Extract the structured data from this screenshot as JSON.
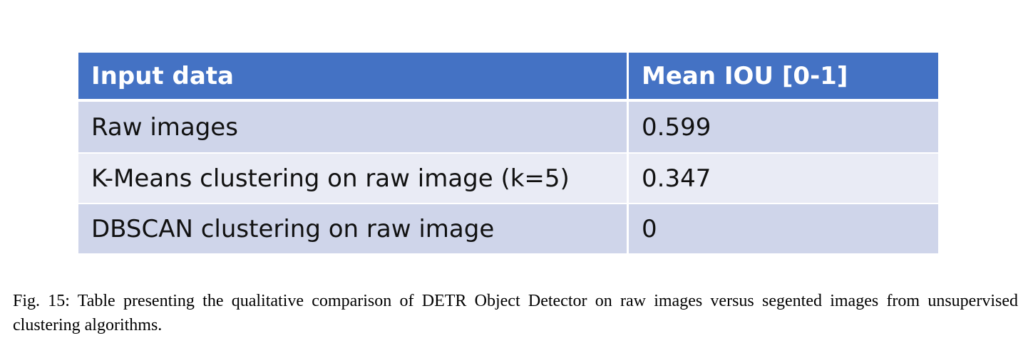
{
  "table": {
    "headers": [
      "Input data",
      "Mean IOU [0-1]"
    ],
    "rows": [
      [
        "Raw images",
        "0.599"
      ],
      [
        "K-Means clustering on raw image (k=5)",
        "0.347"
      ],
      [
        "DBSCAN clustering on raw image",
        "0"
      ]
    ]
  },
  "caption": {
    "text": "Fig. 15: Table presenting the qualitative comparison of DETR Object Detector on raw images versus segented images from unsupervised clustering algorithms."
  },
  "colors": {
    "header_bg": "#4472c4",
    "row_dark": "#cfd5ea",
    "row_light": "#e9ebf5"
  }
}
